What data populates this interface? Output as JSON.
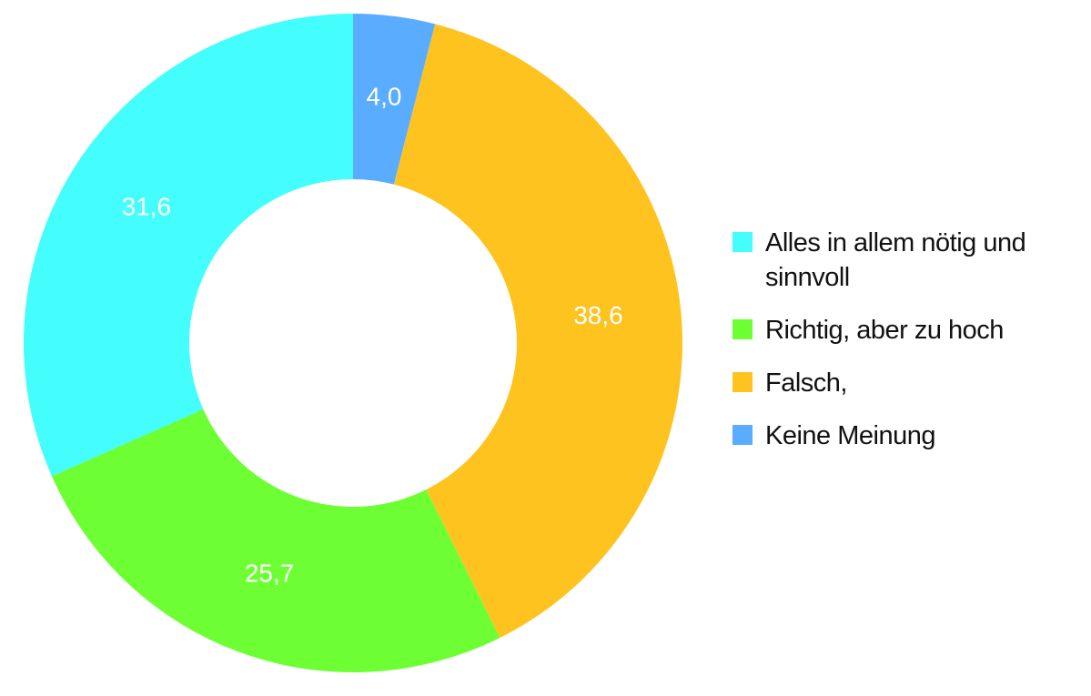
{
  "chart_data": {
    "type": "donut",
    "categories": [
      "Alles in allem nötig und sinnvoll",
      "Richtig, aber zu hoch",
      "Falsch,",
      "Keine Meinung"
    ],
    "values": [
      31.6,
      25.7,
      38.6,
      4.0
    ],
    "value_labels": [
      "31,6",
      "25,7",
      "38,6",
      "4,0"
    ],
    "colors": [
      "#44fdfd",
      "#6dff33",
      "#ffc31f",
      "#59acff"
    ],
    "legend": "right"
  }
}
